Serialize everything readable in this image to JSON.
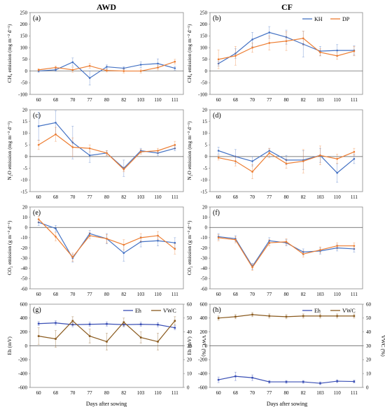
{
  "column_titles": [
    "AWD",
    "CF"
  ],
  "x_axis_label": "Days after sowing",
  "colors": {
    "KH": "#4472c4",
    "DP": "#ed7d31",
    "Eh": "#3a4fb5",
    "VWC": "#8a5a1e"
  },
  "chart_data": [
    {
      "id": "a",
      "tag": "(a)",
      "type": "line",
      "column": 0,
      "ylabel": "CH₄ emission (mg m⁻² d⁻¹)",
      "categories": [
        "60",
        "68",
        "70",
        "77",
        "80",
        "82",
        "103",
        "110",
        "111"
      ],
      "ylim": [
        -100,
        250
      ],
      "yticks": [
        -100,
        -50,
        0,
        50,
        100,
        150,
        200,
        250
      ],
      "series": [
        {
          "key": "KH",
          "values": [
            0,
            5,
            38,
            -30,
            18,
            12,
            27,
            32,
            12
          ],
          "err": [
            5,
            6,
            18,
            30,
            8,
            6,
            12,
            20,
            8
          ]
        },
        {
          "key": "DP",
          "values": [
            5,
            15,
            5,
            22,
            2,
            0,
            0,
            15,
            40
          ],
          "err": [
            5,
            6,
            10,
            10,
            6,
            8,
            8,
            10,
            10
          ]
        }
      ]
    },
    {
      "id": "b",
      "tag": "(b)",
      "type": "line",
      "column": 1,
      "ylabel": "CH₄ emission (mg m⁻² d⁻¹)",
      "categories": [
        "60",
        "68",
        "70",
        "77",
        "80",
        "82",
        "103",
        "110",
        "111"
      ],
      "ylim": [
        -100,
        250
      ],
      "yticks": [
        -100,
        -50,
        0,
        50,
        100,
        150,
        200,
        250
      ],
      "legend": {
        "position": "top-right",
        "entries": [
          "KH",
          "DP"
        ]
      },
      "series": [
        {
          "key": "KH",
          "values": [
            32,
            75,
            135,
            165,
            145,
            115,
            85,
            88,
            88
          ],
          "err": [
            10,
            20,
            30,
            25,
            30,
            55,
            20,
            25,
            20
          ]
        },
        {
          "key": "DP",
          "values": [
            50,
            65,
            100,
            120,
            128,
            140,
            80,
            65,
            85
          ],
          "err": [
            40,
            40,
            20,
            30,
            40,
            30,
            15,
            15,
            20
          ]
        }
      ]
    },
    {
      "id": "c",
      "tag": "(c)",
      "type": "line",
      "column": 0,
      "ylabel": "N₂O emission (mg m⁻² d⁻¹)",
      "categories": [
        "60",
        "68",
        "70",
        "77",
        "80",
        "82",
        "103",
        "110",
        "111"
      ],
      "ylim": [
        -15,
        20
      ],
      "yticks": [
        -15,
        -10,
        -5,
        0,
        5,
        10,
        15,
        20
      ],
      "series": [
        {
          "key": "KH",
          "values": [
            13,
            14.5,
            6,
            0.5,
            1.5,
            -5,
            2.5,
            1.5,
            3.5
          ],
          "err": [
            6,
            5,
            7,
            3,
            1,
            3.5,
            1,
            1,
            1
          ]
        },
        {
          "key": "DP",
          "values": [
            5,
            9.5,
            4,
            3.5,
            1.5,
            -5.5,
            2,
            2.5,
            5
          ],
          "err": [
            2,
            3,
            4,
            1.5,
            1,
            1,
            1,
            1,
            1.5
          ]
        }
      ]
    },
    {
      "id": "d",
      "tag": "(d)",
      "type": "line",
      "column": 1,
      "ylabel": "N₂O emission (mg m⁻² d⁻¹)",
      "categories": [
        "60",
        "68",
        "70",
        "77",
        "80",
        "82",
        "103",
        "110",
        "111"
      ],
      "ylim": [
        -15,
        20
      ],
      "yticks": [
        -15,
        -10,
        -5,
        0,
        5,
        10,
        15,
        20
      ],
      "series": [
        {
          "key": "KH",
          "values": [
            2.5,
            0,
            -2,
            2.5,
            -1.5,
            -1.5,
            0.5,
            -7,
            -1
          ],
          "err": [
            1.5,
            3,
            2,
            1,
            2,
            4,
            3,
            4,
            2
          ]
        },
        {
          "key": "DP",
          "values": [
            -0.5,
            -2,
            -6.5,
            1.5,
            -3,
            -2,
            0.5,
            -1,
            2
          ],
          "err": [
            1,
            2,
            3,
            2,
            2,
            5,
            4,
            2,
            1.5
          ]
        }
      ]
    },
    {
      "id": "e",
      "tag": "(e)",
      "type": "line",
      "column": 0,
      "ylabel": "CO₂ emission (g m⁻² d⁻¹)",
      "categories": [
        "60",
        "68",
        "70",
        "77",
        "80",
        "82",
        "103",
        "110",
        "111"
      ],
      "ylim": [
        -60,
        20
      ],
      "yticks": [
        -60,
        -50,
        -40,
        -30,
        -20,
        -10,
        0,
        10,
        20
      ],
      "series": [
        {
          "key": "KH",
          "values": [
            5,
            -1,
            -30,
            -6,
            -11,
            -25,
            -14,
            -13,
            -15
          ],
          "err": [
            3,
            3,
            4,
            3,
            5,
            8,
            5,
            5,
            5
          ]
        },
        {
          "key": "DP",
          "values": [
            8,
            -9,
            -29,
            -8,
            -11,
            -17,
            -10,
            -8,
            -21
          ],
          "err": [
            3,
            4,
            4,
            3,
            4,
            5,
            4,
            4,
            5
          ]
        }
      ]
    },
    {
      "id": "f",
      "tag": "(f)",
      "type": "line",
      "column": 1,
      "ylabel": "CO₂ emission (g m⁻² d⁻¹)",
      "categories": [
        "60",
        "68",
        "70",
        "77",
        "80",
        "82",
        "103",
        "110",
        "111"
      ],
      "ylim": [
        -60,
        20
      ],
      "yticks": [
        -60,
        -50,
        -40,
        -30,
        -20,
        -10,
        0,
        10,
        20
      ],
      "series": [
        {
          "key": "KH",
          "values": [
            -9,
            -11,
            -38,
            -13,
            -15,
            -24,
            -23,
            -20,
            -21
          ],
          "err": [
            3,
            3,
            3,
            3,
            3,
            3,
            3,
            3,
            3
          ]
        },
        {
          "key": "DP",
          "values": [
            -10,
            -12,
            -39,
            -15,
            -14,
            -26,
            -22,
            -18,
            -18
          ],
          "err": [
            3,
            3,
            3,
            3,
            3,
            3,
            3,
            3,
            3
          ]
        }
      ]
    },
    {
      "id": "g",
      "tag": "(g)",
      "type": "line",
      "column": 0,
      "dual_axis": true,
      "ylabel": "Eh (mV)",
      "ylabel_right": "VWC (%)",
      "categories": [
        "60",
        "68",
        "70",
        "77",
        "80",
        "82",
        "103",
        "110",
        "111"
      ],
      "ylim": [
        -600,
        600
      ],
      "yticks": [
        -600,
        -400,
        -200,
        0,
        200,
        400,
        600
      ],
      "ylim_right": [
        0,
        60
      ],
      "yticks_right": [
        0,
        10,
        20,
        30,
        40,
        50,
        60
      ],
      "legend": {
        "position": "top-right",
        "entries": [
          "Eh",
          "VWC"
        ]
      },
      "series": [
        {
          "key": "Eh",
          "axis": "left",
          "values": [
            320,
            330,
            305,
            310,
            315,
            305,
            310,
            305,
            260
          ],
          "err": [
            30,
            30,
            30,
            30,
            30,
            30,
            30,
            30,
            30
          ]
        },
        {
          "key": "VWC",
          "axis": "right",
          "values": [
            37,
            35,
            48,
            37,
            33,
            47,
            36,
            33,
            48
          ],
          "err": [
            6,
            6,
            3,
            5,
            6,
            3,
            4,
            6,
            3
          ]
        }
      ]
    },
    {
      "id": "h",
      "tag": "(h)",
      "type": "line",
      "column": 1,
      "dual_axis": true,
      "ylabel": "Eh (mV)",
      "ylabel_right": "VWC (%)",
      "categories": [
        "60",
        "68",
        "70",
        "77",
        "80",
        "82",
        "103",
        "110",
        "111"
      ],
      "ylim": [
        -600,
        600
      ],
      "yticks": [
        -600,
        -400,
        -200,
        0,
        200,
        400,
        600
      ],
      "ylim_right": [
        0,
        60
      ],
      "yticks_right": [
        0,
        10,
        20,
        30,
        40,
        50,
        60
      ],
      "legend": {
        "position": "top-right",
        "entries": [
          "Eh",
          "VWC"
        ]
      },
      "series": [
        {
          "key": "Eh",
          "axis": "left",
          "values": [
            -490,
            -440,
            -460,
            -520,
            -520,
            -520,
            -540,
            -510,
            -515
          ],
          "err": [
            40,
            60,
            40,
            20,
            20,
            20,
            20,
            20,
            20
          ]
        },
        {
          "key": "VWC",
          "axis": "right",
          "values": [
            50,
            51,
            52.5,
            51.5,
            51,
            51.5,
            51.5,
            51.5,
            51.5
          ],
          "err": [
            1.5,
            1.5,
            1.5,
            1.5,
            1.5,
            1.5,
            1.5,
            1.5,
            1.5
          ]
        }
      ]
    }
  ]
}
